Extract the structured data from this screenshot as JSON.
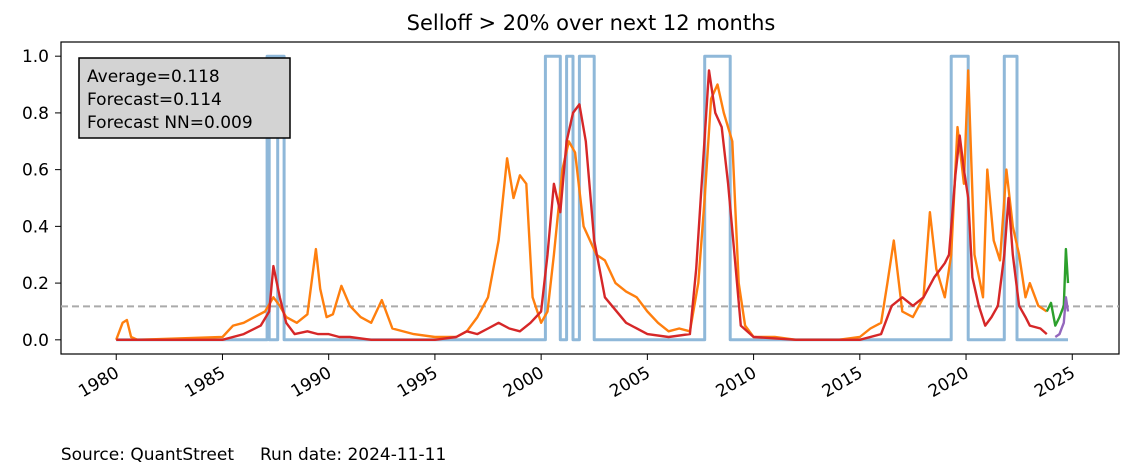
{
  "chart_data": {
    "type": "line",
    "title": "Selloff > 20% over next 12 months",
    "xlabel": "",
    "ylabel": "",
    "xlim": [
      1977.4,
      2027.2
    ],
    "ylim": [
      -0.05,
      1.05
    ],
    "xticks": [
      "1980",
      "1985",
      "1990",
      "1995",
      "2000",
      "2005",
      "2010",
      "2015",
      "2020",
      "2025"
    ],
    "yticks": [
      "0.0",
      "0.2",
      "0.4",
      "0.6",
      "0.8",
      "1.0"
    ],
    "grid": false,
    "average_line": {
      "y": 0.118,
      "color": "#aaaaaa",
      "style": "dashed"
    },
    "annotation": [
      "Average=0.118",
      "Forecast=0.114",
      "Forecast NN=0.009"
    ],
    "series": [
      {
        "color": "#8fb8d9",
        "x": [
          1980.0,
          1987.1,
          1987.1,
          1987.6,
          1987.6,
          1987.2,
          1987.2,
          1987.9,
          1987.9,
          2000.2,
          2000.2,
          2000.9,
          2000.9,
          2001.2,
          2001.2,
          2001.5,
          2001.5,
          2001.8,
          2001.8,
          2002.5,
          2002.5,
          2007.7,
          2007.7,
          2008.9,
          2008.9,
          2009.2,
          2009.2,
          2019.3,
          2019.3,
          2020.1,
          2020.1,
          2021.8,
          2021.8,
          2022.4,
          2022.4,
          2024.8
        ],
        "y": [
          0,
          0,
          1,
          1,
          0,
          0,
          1,
          1,
          0,
          0,
          1,
          1,
          0,
          0,
          1,
          1,
          0,
          0,
          1,
          1,
          0,
          0,
          1,
          1,
          0,
          0,
          0,
          0,
          1,
          1,
          0,
          0,
          1,
          1,
          0,
          0
        ]
      },
      {
        "color": "#ff7f0e",
        "x": [
          1980.0,
          1980.3,
          1980.5,
          1980.7,
          1981.0,
          1985.0,
          1985.5,
          1986.0,
          1986.5,
          1987.0,
          1987.4,
          1987.7,
          1988.0,
          1988.5,
          1989.0,
          1989.4,
          1989.6,
          1989.9,
          1990.2,
          1990.6,
          1991.0,
          1991.5,
          1992.0,
          1992.5,
          1993.0,
          1994.0,
          1995.0,
          1996.0,
          1996.5,
          1997.0,
          1997.5,
          1998.0,
          1998.4,
          1998.7,
          1999.0,
          1999.3,
          1999.6,
          2000.0,
          2000.3,
          2000.6,
          2001.0,
          2001.3,
          2001.6,
          2002.0,
          2002.3,
          2002.6,
          2003.0,
          2003.5,
          2004.0,
          2004.5,
          2005.0,
          2005.5,
          2006.0,
          2006.5,
          2007.0,
          2007.4,
          2007.7,
          2008.0,
          2008.3,
          2008.6,
          2009.0,
          2009.3,
          2009.6,
          2010.0,
          2011.0,
          2012.0,
          2013.0,
          2014.0,
          2015.0,
          2015.5,
          2016.0,
          2016.3,
          2016.6,
          2017.0,
          2017.5,
          2018.0,
          2018.3,
          2018.6,
          2019.0,
          2019.3,
          2019.6,
          2019.9,
          2020.1,
          2020.4,
          2020.8,
          2021.0,
          2021.3,
          2021.6,
          2021.9,
          2022.2,
          2022.5,
          2022.8,
          2023.0,
          2023.4,
          2023.8
        ],
        "y": [
          0.0,
          0.06,
          0.07,
          0.01,
          0.0,
          0.01,
          0.05,
          0.06,
          0.08,
          0.1,
          0.15,
          0.12,
          0.08,
          0.06,
          0.09,
          0.32,
          0.18,
          0.08,
          0.09,
          0.19,
          0.12,
          0.08,
          0.06,
          0.14,
          0.04,
          0.02,
          0.01,
          0.01,
          0.03,
          0.08,
          0.15,
          0.35,
          0.64,
          0.5,
          0.58,
          0.55,
          0.15,
          0.06,
          0.1,
          0.3,
          0.6,
          0.7,
          0.66,
          0.4,
          0.35,
          0.3,
          0.28,
          0.2,
          0.17,
          0.15,
          0.1,
          0.06,
          0.03,
          0.04,
          0.03,
          0.2,
          0.5,
          0.85,
          0.9,
          0.8,
          0.7,
          0.2,
          0.05,
          0.01,
          0.01,
          0.0,
          0.0,
          0.0,
          0.01,
          0.04,
          0.06,
          0.2,
          0.35,
          0.1,
          0.08,
          0.15,
          0.45,
          0.25,
          0.15,
          0.3,
          0.75,
          0.55,
          0.95,
          0.3,
          0.15,
          0.6,
          0.35,
          0.28,
          0.6,
          0.4,
          0.3,
          0.15,
          0.2,
          0.12,
          0.1
        ]
      },
      {
        "color": "#d62728",
        "x": [
          1980.0,
          1985.0,
          1986.0,
          1986.8,
          1987.2,
          1987.4,
          1987.7,
          1988.0,
          1988.4,
          1989.0,
          1989.5,
          1990.0,
          1990.5,
          1991.0,
          1992.0,
          1993.0,
          1995.0,
          1996.0,
          1996.5,
          1997.0,
          1997.5,
          1998.0,
          1998.5,
          1999.0,
          1999.5,
          2000.0,
          2000.3,
          2000.6,
          2000.9,
          2001.2,
          2001.5,
          2001.8,
          2002.1,
          2002.5,
          2003.0,
          2004.0,
          2005.0,
          2006.0,
          2007.0,
          2007.3,
          2007.6,
          2007.9,
          2008.2,
          2008.5,
          2008.8,
          2009.1,
          2009.4,
          2010.0,
          2012.0,
          2014.0,
          2015.0,
          2016.0,
          2016.5,
          2017.0,
          2017.5,
          2018.0,
          2018.5,
          2019.0,
          2019.2,
          2019.5,
          2019.7,
          2019.9,
          2020.1,
          2020.3,
          2020.6,
          2020.9,
          2021.2,
          2021.5,
          2021.8,
          2022.0,
          2022.2,
          2022.5,
          2022.8,
          2023.0,
          2023.5,
          2023.8
        ],
        "y": [
          0.0,
          0.0,
          0.02,
          0.05,
          0.1,
          0.26,
          0.15,
          0.06,
          0.02,
          0.03,
          0.02,
          0.02,
          0.01,
          0.01,
          0.0,
          0.0,
          0.0,
          0.01,
          0.03,
          0.02,
          0.04,
          0.06,
          0.04,
          0.03,
          0.06,
          0.1,
          0.3,
          0.55,
          0.45,
          0.7,
          0.8,
          0.83,
          0.7,
          0.35,
          0.15,
          0.06,
          0.02,
          0.01,
          0.02,
          0.25,
          0.6,
          0.95,
          0.8,
          0.75,
          0.55,
          0.3,
          0.05,
          0.01,
          0.0,
          0.0,
          0.0,
          0.02,
          0.12,
          0.15,
          0.12,
          0.15,
          0.22,
          0.27,
          0.3,
          0.58,
          0.72,
          0.6,
          0.5,
          0.22,
          0.12,
          0.05,
          0.08,
          0.12,
          0.3,
          0.5,
          0.3,
          0.12,
          0.08,
          0.05,
          0.04,
          0.02
        ]
      },
      {
        "color": "#2ca02c",
        "x": [
          2023.8,
          2024.0,
          2024.2,
          2024.4,
          2024.6,
          2024.7,
          2024.8
        ],
        "y": [
          0.1,
          0.13,
          0.05,
          0.08,
          0.12,
          0.32,
          0.2
        ]
      },
      {
        "color": "#9467bd",
        "x": [
          2024.2,
          2024.4,
          2024.5,
          2024.6,
          2024.7,
          2024.8
        ],
        "y": [
          0.01,
          0.02,
          0.04,
          0.06,
          0.15,
          0.1
        ]
      }
    ]
  },
  "footer": {
    "source": "Source: QuantStreet",
    "run_date": "Run date: 2024-11-11"
  }
}
